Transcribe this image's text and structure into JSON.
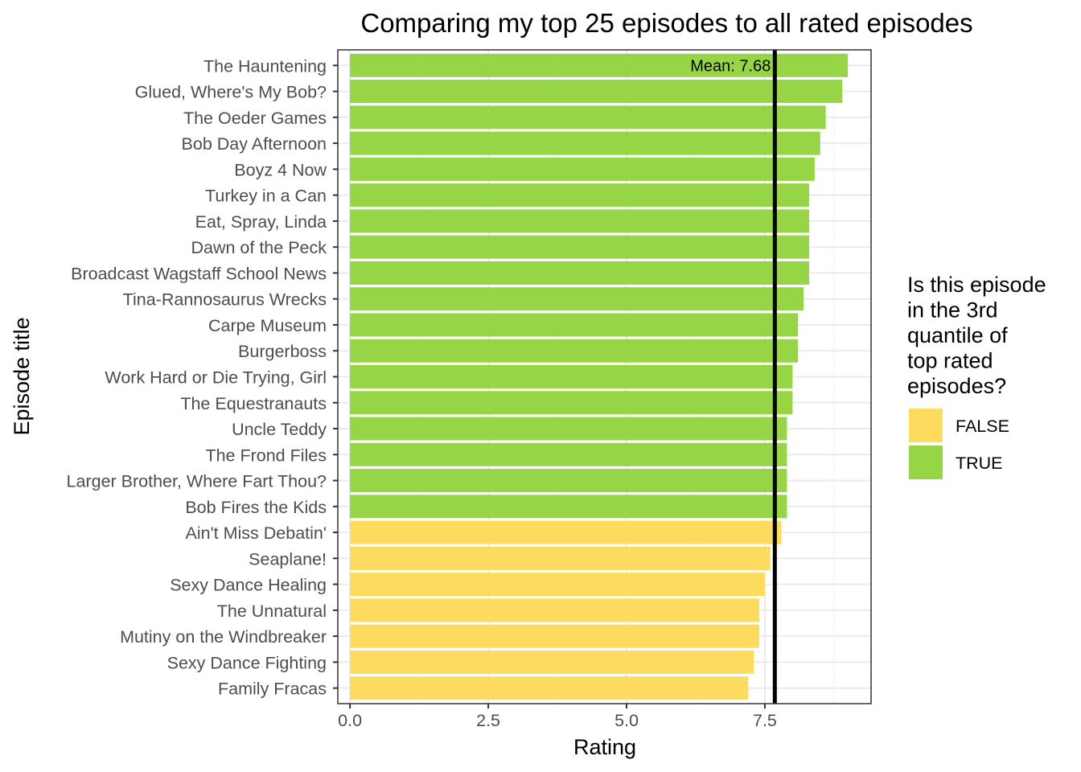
{
  "chart_data": {
    "type": "bar",
    "orientation": "horizontal",
    "title": "Comparing my top 25 episodes to all rated episodes",
    "xlabel": "Rating",
    "ylabel": "Episode title",
    "xlim": [
      -0.22,
      9.42
    ],
    "x_ticks": [
      0.0,
      2.5,
      5.0,
      7.5
    ],
    "x_tick_labels": [
      "0.0",
      "2.5",
      "5.0",
      "7.5"
    ],
    "grid": true,
    "legend": {
      "title_lines": [
        "Is this episode",
        "in the 3rd",
        "quantile of",
        "top rated",
        "episodes?"
      ],
      "position": "right",
      "entries": [
        {
          "label": "FALSE",
          "color": "#FCDB5F"
        },
        {
          "label": "TRUE",
          "color": "#96D646"
        }
      ]
    },
    "mean_line": {
      "value": 7.68,
      "label": "Mean: 7.68"
    },
    "categories": [
      "The Hauntening",
      "Glued, Where's My Bob?",
      "The Oeder Games",
      "Bob Day Afternoon",
      "Boyz 4 Now",
      "Turkey in a Can",
      "Eat, Spray, Linda",
      "Dawn of the Peck",
      "Broadcast Wagstaff School News",
      "Tina-Rannosaurus Wrecks",
      "Carpe Museum",
      "Burgerboss",
      "Work Hard or Die Trying, Girl",
      "The Equestranauts",
      "Uncle Teddy",
      "The Frond Files",
      "Larger Brother, Where Fart Thou?",
      "Bob Fires the Kids",
      "Ain't Miss Debatin'",
      "Seaplane!",
      "Sexy Dance Healing",
      "The Unnatural",
      "Mutiny on the Windbreaker",
      "Sexy Dance Fighting",
      "Family Fracas"
    ],
    "values": [
      9.0,
      8.9,
      8.6,
      8.5,
      8.4,
      8.3,
      8.3,
      8.3,
      8.3,
      8.2,
      8.1,
      8.1,
      8.0,
      8.0,
      7.9,
      7.9,
      7.9,
      7.9,
      7.8,
      7.6,
      7.5,
      7.4,
      7.4,
      7.3,
      7.2
    ],
    "third_quantile": [
      true,
      true,
      true,
      true,
      true,
      true,
      true,
      true,
      true,
      true,
      true,
      true,
      true,
      true,
      true,
      true,
      true,
      true,
      false,
      false,
      false,
      false,
      false,
      false,
      false
    ]
  }
}
